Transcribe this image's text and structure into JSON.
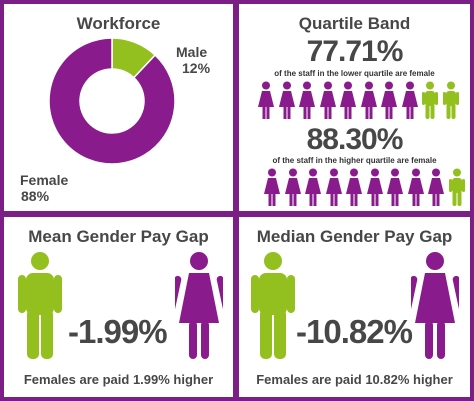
{
  "colors": {
    "purple": "#8a1b8c",
    "green": "#93c01f",
    "text": "#474747",
    "border": "#7b1f86"
  },
  "workforce": {
    "title": "Workforce",
    "male_label": "Male",
    "male_pct": "12%",
    "female_label": "Female",
    "female_pct": "88%"
  },
  "quartile": {
    "title": "Quartile Band",
    "lower": {
      "pct": "77.71%",
      "caption": "of the staff in the lower quartile are female",
      "female_figures": 8,
      "male_figures": 2
    },
    "higher": {
      "pct": "88.30%",
      "caption": "of the staff in the higher quartile are female",
      "female_figures": 9,
      "male_figures": 1
    }
  },
  "mean": {
    "title": "Mean Gender Pay Gap",
    "value": "-1.99%",
    "note": "Females are paid 1.99% higher"
  },
  "median": {
    "title": "Median Gender Pay Gap",
    "value": "-10.82%",
    "note": "Females are paid 10.82% higher"
  },
  "icons": {
    "male": "male-person-icon",
    "female": "female-person-icon"
  },
  "chart_data": [
    {
      "type": "pie",
      "title": "Workforce",
      "categories": [
        "Female",
        "Male"
      ],
      "values": [
        88,
        12
      ]
    },
    {
      "type": "table",
      "title": "Quartile Band",
      "rows": [
        {
          "band": "lower quartile",
          "female_pct": 77.71
        },
        {
          "band": "higher quartile",
          "female_pct": 88.3
        }
      ]
    },
    {
      "type": "table",
      "title": "Gender Pay Gap",
      "rows": [
        {
          "measure": "Mean",
          "gap_pct": -1.99
        },
        {
          "measure": "Median",
          "gap_pct": -10.82
        }
      ]
    }
  ]
}
